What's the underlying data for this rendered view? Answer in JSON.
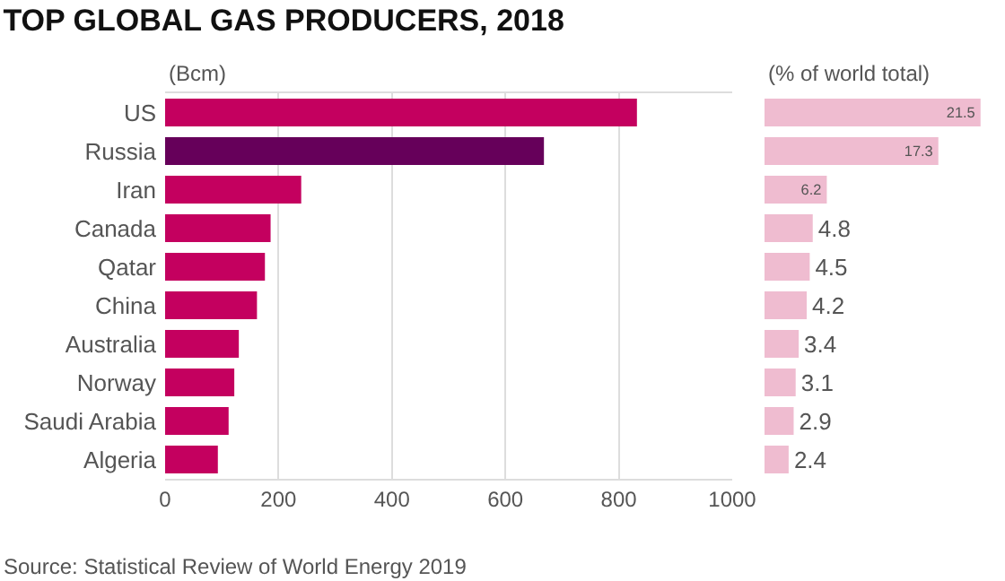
{
  "chart_data": [
    {
      "type": "bar",
      "orientation": "horizontal",
      "title": "TOP GLOBAL GAS PRODUCERS, 2018",
      "xlabel": "(Bcm)",
      "categories": [
        "US",
        "Russia",
        "Iran",
        "Canada",
        "Qatar",
        "China",
        "Australia",
        "Norway",
        "Saudi Arabia",
        "Algeria"
      ],
      "values": [
        832,
        668,
        240,
        186,
        176,
        162,
        130,
        122,
        112,
        93
      ],
      "colors": [
        "#c4005f",
        "#66005a",
        "#c4005f",
        "#c4005f",
        "#c4005f",
        "#c4005f",
        "#c4005f",
        "#c4005f",
        "#c4005f",
        "#c4005f"
      ],
      "xlim": [
        0,
        1000
      ],
      "xticks": [
        0,
        200,
        400,
        600,
        800,
        1000
      ],
      "grid": "x",
      "annotations": [
        "Source: Statistical Review of World Energy 2019"
      ]
    },
    {
      "type": "bar",
      "orientation": "horizontal",
      "xlabel": "(% of world total)",
      "categories": [
        null,
        null,
        null,
        null,
        null,
        null,
        null,
        null,
        null,
        null
      ],
      "values": [
        21.5,
        17.3,
        6.2,
        4.8,
        4.5,
        4.2,
        3.4,
        3.1,
        2.9,
        2.4
      ],
      "color": "#efbcd0",
      "data_labels": true,
      "tick_labels": false
    }
  ]
}
